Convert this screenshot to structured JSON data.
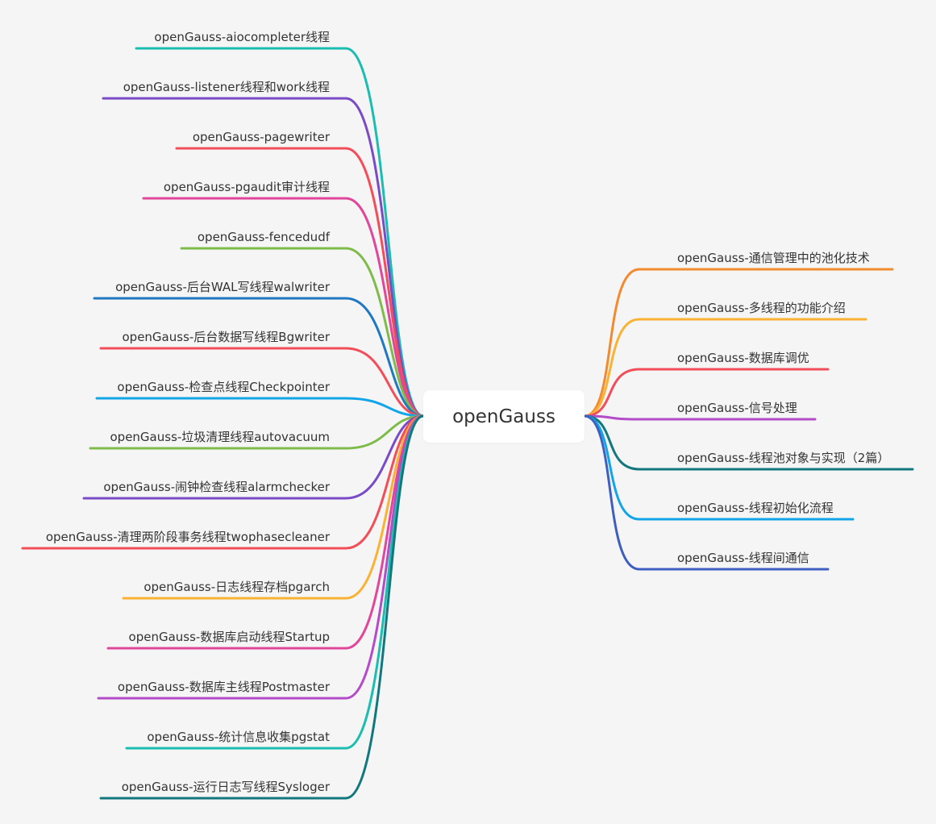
{
  "central_topic": "openGauss",
  "left_branches": [
    {
      "label": "openGauss-aiocompleter线程",
      "color": "#1bbdb1"
    },
    {
      "label": "openGauss-listener线程和work线程",
      "color": "#7a4bc6"
    },
    {
      "label": "openGauss-pagewriter",
      "color": "#f24e5a"
    },
    {
      "label": "openGauss-pgaudit审计线程",
      "color": "#e0479a"
    },
    {
      "label": "openGauss-fencedudf",
      "color": "#7fbb4a"
    },
    {
      "label": "openGauss-后台WAL写线程walwriter",
      "color": "#1f78c1"
    },
    {
      "label": "openGauss-后台数据写线程Bgwriter",
      "color": "#f24e5a"
    },
    {
      "label": "openGauss-检查点线程Checkpointer",
      "color": "#12a6e8"
    },
    {
      "label": "openGauss-垃圾清理线程autovacuum",
      "color": "#7fbb4a"
    },
    {
      "label": "openGauss-闹钟检查线程alarmchecker",
      "color": "#7a4bc6"
    },
    {
      "label": "openGauss-清理两阶段事务线程twophasecleaner",
      "color": "#f24e5a"
    },
    {
      "label": "openGauss-日志线程存档pgarch",
      "color": "#f9b233"
    },
    {
      "label": "openGauss-数据库启动线程Startup",
      "color": "#e0479a"
    },
    {
      "label": "openGauss-数据库主线程Postmaster",
      "color": "#b44bc8"
    },
    {
      "label": "openGauss-统计信息收集pgstat",
      "color": "#1bbdb1"
    },
    {
      "label": "openGauss-运行日志写线程Sysloger",
      "color": "#13787d"
    }
  ],
  "right_branches": [
    {
      "label": "openGauss-通信管理中的池化技术",
      "color": "#f28b30"
    },
    {
      "label": "openGauss-多线程的功能介绍",
      "color": "#f9b233"
    },
    {
      "label": "openGauss-数据库调优",
      "color": "#f24e5a"
    },
    {
      "label": "openGauss-信号处理",
      "color": "#b44bc8"
    },
    {
      "label": "openGauss-线程池对象与实现（2篇）",
      "color": "#13787d"
    },
    {
      "label": "openGauss-线程初始化流程",
      "color": "#12a6e8"
    },
    {
      "label": "openGauss-线程间通信",
      "color": "#3e5fc0"
    }
  ]
}
